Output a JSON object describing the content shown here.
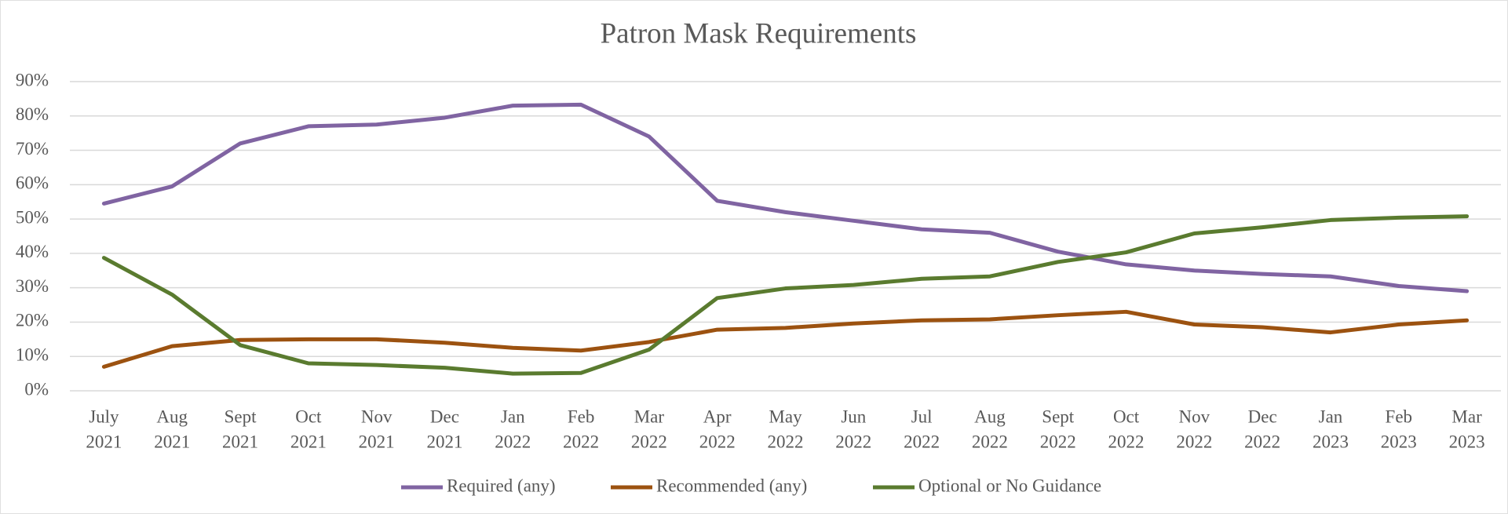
{
  "chart_data": {
    "type": "line",
    "title": "Patron Mask Requirements",
    "categories": [
      [
        "July",
        "2021"
      ],
      [
        "Aug",
        "2021"
      ],
      [
        "Sept",
        "2021"
      ],
      [
        "Oct",
        "2021"
      ],
      [
        "Nov",
        "2021"
      ],
      [
        "Dec",
        "2021"
      ],
      [
        "Jan",
        "2022"
      ],
      [
        "Feb",
        "2022"
      ],
      [
        "Mar",
        "2022"
      ],
      [
        "Apr",
        "2022"
      ],
      [
        "May",
        "2022"
      ],
      [
        "Jun",
        "2022"
      ],
      [
        "Jul",
        "2022"
      ],
      [
        "Aug",
        "2022"
      ],
      [
        "Sept",
        "2022"
      ],
      [
        "Oct",
        "2022"
      ],
      [
        "Nov",
        "2022"
      ],
      [
        "Dec",
        "2022"
      ],
      [
        "Jan",
        "2023"
      ],
      [
        "Feb",
        "2023"
      ],
      [
        "Mar",
        "2023"
      ]
    ],
    "series": [
      {
        "name": "Required (any)",
        "color": "#8064a2",
        "values": [
          54.5,
          59.5,
          72,
          77,
          77.5,
          79.5,
          83,
          83.3,
          74,
          55.3,
          52,
          49.5,
          47,
          46,
          40.5,
          36.8,
          35,
          34,
          33.3,
          30.5,
          29
        ]
      },
      {
        "name": "Recommended (any)",
        "color": "#9c5210",
        "values": [
          7,
          13,
          14.8,
          15,
          15,
          14,
          12.5,
          11.7,
          14.2,
          17.8,
          18.3,
          19.6,
          20.5,
          20.8,
          22,
          23,
          19.3,
          18.5,
          17,
          19.3,
          20.5
        ]
      },
      {
        "name": "Optional or No Guidance",
        "color": "#5a7b2f",
        "values": [
          38.7,
          28,
          13.3,
          8,
          7.5,
          6.7,
          5,
          5.2,
          12,
          27,
          29.8,
          30.8,
          32.6,
          33.3,
          37.5,
          40.3,
          45.8,
          47.6,
          49.7,
          50.4,
          50.8
        ]
      }
    ],
    "ylim": [
      0,
      90
    ],
    "yticks": [
      {
        "value": 0,
        "label": "0%"
      },
      {
        "value": 10,
        "label": "10%"
      },
      {
        "value": 20,
        "label": "20%"
      },
      {
        "value": 30,
        "label": "30%"
      },
      {
        "value": 40,
        "label": "40%"
      },
      {
        "value": 50,
        "label": "50%"
      },
      {
        "value": 60,
        "label": "60%"
      },
      {
        "value": 70,
        "label": "70%"
      },
      {
        "value": 80,
        "label": "80%"
      },
      {
        "value": 90,
        "label": "90%"
      }
    ],
    "grid": true,
    "legend": "bottom"
  }
}
